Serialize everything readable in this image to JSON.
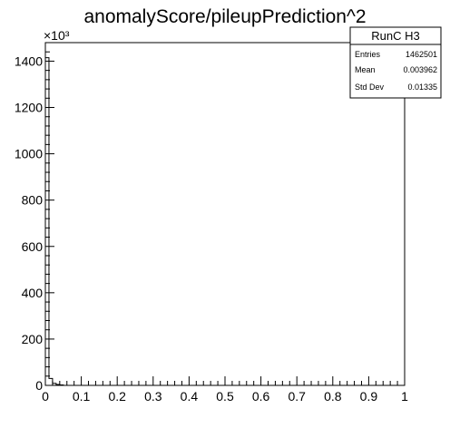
{
  "chart_data": {
    "type": "histogram",
    "title": "anomalyScore/pileupPrediction^2",
    "xlim": [
      0,
      1
    ],
    "ylim": [
      0,
      1480000
    ],
    "y_multiplier_label": "×10³",
    "x_ticks": [
      "0",
      "0.1",
      "0.2",
      "0.3",
      "0.4",
      "0.5",
      "0.6",
      "0.7",
      "0.8",
      "0.9",
      "1"
    ],
    "y_ticks": [
      "0",
      "200",
      "400",
      "600",
      "800",
      "1000",
      "1200",
      "1400"
    ],
    "y_tick_values": [
      0,
      200000,
      400000,
      600000,
      800000,
      1000000,
      1200000,
      1400000
    ],
    "bin_width": 0.01,
    "bins": [
      {
        "x0": 0.0,
        "x1": 0.01,
        "count": 1415000
      },
      {
        "x0": 0.01,
        "x1": 0.02,
        "count": 30000
      },
      {
        "x0": 0.02,
        "x1": 0.03,
        "count": 9000
      },
      {
        "x0": 0.03,
        "x1": 0.04,
        "count": 4000
      },
      {
        "x0": 0.04,
        "x1": 0.05,
        "count": 2000
      }
    ],
    "stats_box": {
      "name": "RunC H3",
      "rows": [
        {
          "label": "Entries",
          "value": "1462501"
        },
        {
          "label": "Mean",
          "value": "0.003962"
        },
        {
          "label": "Std Dev",
          "value": "0.01335"
        }
      ]
    },
    "line_color": "#000000"
  }
}
